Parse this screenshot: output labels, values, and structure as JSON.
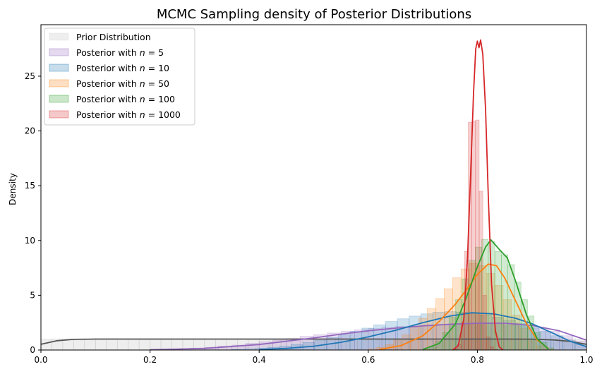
{
  "chart_data": {
    "type": "histogram",
    "title": "MCMC Sampling density of Posterior Distributions",
    "xlabel": "",
    "ylabel": "Density",
    "xlim": [
      0.0,
      1.0
    ],
    "ylim": [
      0,
      29.7
    ],
    "x_ticks": [
      "0.0",
      "0.2",
      "0.4",
      "0.6",
      "0.8",
      "1.0"
    ],
    "y_ticks": [
      "0",
      "5",
      "10",
      "15",
      "20",
      "25"
    ],
    "grid": false,
    "legend_position": "upper left",
    "series": [
      {
        "name": "Prior Distribution",
        "color": "#555555",
        "hist_fill": "#d9d9d9",
        "hist_edges": [
          0.0,
          1.0
        ],
        "hist_count": 50,
        "hist_values": [
          0.98,
          1.02,
          0.99,
          1.01,
          1.0,
          0.97,
          1.03,
          1.0,
          0.99,
          1.01,
          1.0,
          0.98,
          1.02,
          1.0,
          0.99,
          1.01,
          1.0,
          0.98,
          1.02,
          1.0,
          0.99,
          1.01,
          1.0,
          0.98,
          1.02,
          1.0,
          0.99,
          1.01,
          1.0,
          0.98,
          1.02,
          1.0,
          0.99,
          1.01,
          1.0,
          0.98,
          1.02,
          1.0,
          0.99,
          1.01,
          1.0,
          0.98,
          1.02,
          1.0,
          0.99,
          1.01,
          1.0,
          0.98,
          1.02,
          1.0
        ],
        "kde_x": [
          0.0,
          0.03,
          0.06,
          0.1,
          0.15,
          0.2,
          0.3,
          0.4,
          0.5,
          0.6,
          0.7,
          0.8,
          0.85,
          0.9,
          0.94,
          0.97,
          1.0
        ],
        "kde_y": [
          0.52,
          0.85,
          0.97,
          1.0,
          1.0,
          1.0,
          1.0,
          1.0,
          1.0,
          1.0,
          1.0,
          1.0,
          1.0,
          0.99,
          0.92,
          0.78,
          0.52
        ]
      },
      {
        "name": "Posterior with $n = 5$",
        "label_prefix": "Posterior with ",
        "label_n": "5",
        "color": "#9467bd",
        "hist_fill": "#9467bd",
        "hist_edges": [
          0.2,
          1.0
        ],
        "hist_count": 32,
        "hist_values": [
          0.05,
          0.08,
          0.12,
          0.18,
          0.25,
          0.35,
          0.45,
          0.6,
          0.75,
          0.9,
          1.05,
          1.25,
          1.4,
          1.55,
          1.7,
          1.85,
          1.95,
          2.05,
          2.15,
          2.2,
          2.3,
          2.35,
          2.4,
          2.45,
          2.4,
          2.35,
          2.3,
          2.2,
          2.0,
          1.7,
          1.3,
          0.8
        ],
        "kde_x": [
          0.2,
          0.3,
          0.4,
          0.5,
          0.55,
          0.6,
          0.65,
          0.7,
          0.75,
          0.8,
          0.85,
          0.9,
          0.95,
          1.0
        ],
        "kde_y": [
          0.02,
          0.15,
          0.5,
          1.1,
          1.45,
          1.75,
          2.0,
          2.2,
          2.35,
          2.45,
          2.45,
          2.25,
          1.75,
          0.9
        ]
      },
      {
        "name": "Posterior with $n = 10$",
        "label_prefix": "Posterior with ",
        "label_n": "10",
        "color": "#1f77b4",
        "hist_fill": "#1f77b4",
        "hist_edges": [
          0.35,
          1.0
        ],
        "hist_count": 30,
        "hist_values": [
          0.05,
          0.1,
          0.15,
          0.25,
          0.35,
          0.5,
          0.7,
          0.9,
          1.15,
          1.4,
          1.7,
          2.0,
          2.3,
          2.6,
          2.85,
          3.1,
          3.3,
          3.45,
          3.5,
          3.45,
          3.35,
          3.2,
          3.0,
          2.75,
          2.45,
          2.1,
          1.7,
          1.3,
          0.9,
          0.5
        ],
        "kde_x": [
          0.4,
          0.45,
          0.5,
          0.55,
          0.6,
          0.65,
          0.7,
          0.75,
          0.79,
          0.83,
          0.87,
          0.9,
          0.94,
          0.97,
          1.0
        ],
        "kde_y": [
          0.05,
          0.15,
          0.35,
          0.7,
          1.2,
          1.8,
          2.5,
          3.1,
          3.4,
          3.3,
          2.9,
          2.4,
          1.5,
          0.8,
          0.3
        ]
      },
      {
        "name": "Posterior with $n = 50$",
        "label_prefix": "Posterior with ",
        "label_n": "50",
        "color": "#ff7f0e",
        "hist_fill": "#ff7f0e",
        "hist_edges": [
          0.6,
          0.94
        ],
        "hist_count": 22,
        "hist_values": [
          0.1,
          0.25,
          0.5,
          0.9,
          1.4,
          2.1,
          2.9,
          3.8,
          4.7,
          5.6,
          6.6,
          7.4,
          7.9,
          7.7,
          7.0,
          5.9,
          4.6,
          3.2,
          2.0,
          1.0,
          0.4,
          0.1
        ],
        "kde_x": [
          0.62,
          0.66,
          0.7,
          0.73,
          0.76,
          0.78,
          0.8,
          0.82,
          0.835,
          0.85,
          0.87,
          0.89,
          0.91,
          0.93
        ],
        "kde_y": [
          0.05,
          0.4,
          1.3,
          2.6,
          4.2,
          5.5,
          6.9,
          7.85,
          7.7,
          6.6,
          4.5,
          2.4,
          0.9,
          0.15
        ]
      },
      {
        "name": "Posterior with $n = 100$",
        "label_prefix": "Posterior with ",
        "label_n": "100",
        "color": "#2ca02c",
        "hist_fill": "#2ca02c",
        "hist_edges": [
          0.7,
          0.94
        ],
        "hist_count": 20,
        "hist_values": [
          0.1,
          0.3,
          0.8,
          1.6,
          3.0,
          4.6,
          6.5,
          8.2,
          9.4,
          10.1,
          9.9,
          9.0,
          8.7,
          7.8,
          6.2,
          4.6,
          3.1,
          1.6,
          0.7,
          0.2
        ],
        "kde_x": [
          0.7,
          0.73,
          0.76,
          0.78,
          0.8,
          0.815,
          0.825,
          0.84,
          0.855,
          0.87,
          0.89,
          0.91,
          0.93
        ],
        "kde_y": [
          0.05,
          0.6,
          2.4,
          4.8,
          7.6,
          9.4,
          10.05,
          9.2,
          8.4,
          6.3,
          3.2,
          1.0,
          0.1
        ]
      },
      {
        "name": "Posterior with $n = 1000$",
        "label_prefix": "Posterior with ",
        "label_n": "1000",
        "color": "#d62728",
        "hist_fill": "#d62728",
        "hist_edges": [
          0.75,
          0.85
        ],
        "hist_count": 15,
        "hist_values": [
          0.0,
          0.1,
          0.5,
          2.5,
          9.0,
          20.8,
          20.9,
          21.0,
          14.5,
          5.0,
          1.2,
          0.3,
          0.05,
          0.0,
          0.0
        ],
        "kde_x": [
          0.755,
          0.765,
          0.775,
          0.782,
          0.788,
          0.793,
          0.797,
          0.8,
          0.803,
          0.806,
          0.81,
          0.815,
          0.82,
          0.826,
          0.833,
          0.84,
          0.847
        ],
        "kde_y": [
          0.0,
          0.4,
          2.8,
          8.5,
          16.5,
          23.5,
          27.5,
          28.2,
          27.6,
          28.3,
          27.0,
          22.0,
          14.0,
          6.0,
          1.8,
          0.3,
          0.0
        ]
      }
    ]
  }
}
